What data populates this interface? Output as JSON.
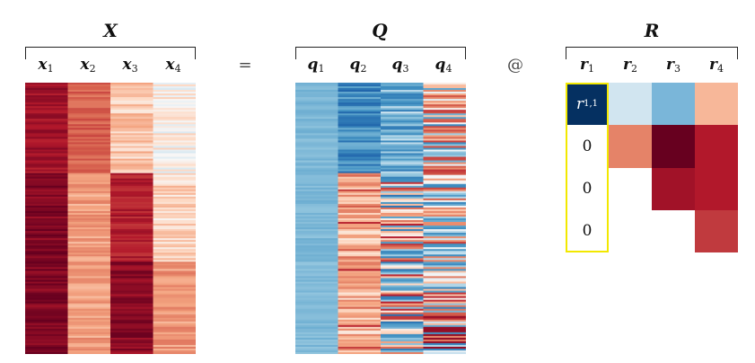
{
  "equation": {
    "x_title": "X",
    "equals": "=",
    "q_title": "Q",
    "at": "@",
    "r_title": "R"
  },
  "x_columns": [
    {
      "base": "x",
      "sub": "1"
    },
    {
      "base": "x",
      "sub": "2"
    },
    {
      "base": "x",
      "sub": "3"
    },
    {
      "base": "x",
      "sub": "4"
    }
  ],
  "q_columns": [
    {
      "base": "q",
      "sub": "1"
    },
    {
      "base": "q",
      "sub": "2"
    },
    {
      "base": "q",
      "sub": "3"
    },
    {
      "base": "q",
      "sub": "4"
    }
  ],
  "r_columns": [
    {
      "base": "r",
      "sub": "1"
    },
    {
      "base": "r",
      "sub": "2"
    },
    {
      "base": "r",
      "sub": "3"
    },
    {
      "base": "r",
      "sub": "4"
    }
  ],
  "r_matrix": {
    "highlight_label": {
      "base": "r",
      "sub": "1,1"
    },
    "zero": "0",
    "colors": [
      [
        "#053061",
        "#d1e5f0",
        "#7ab6d9",
        "#f7b799"
      ],
      [
        "#ffffff",
        "#e58368",
        "#67001f",
        "#b2182b"
      ],
      [
        "#ffffff",
        "#ffffff",
        "#a11228",
        "#b2182b"
      ],
      [
        "#ffffff",
        "#ffffff",
        "#ffffff",
        "#c03a3e"
      ]
    ],
    "labels": [
      [
        "r11",
        "",
        "",
        ""
      ],
      [
        "0",
        "",
        "",
        ""
      ],
      [
        "0",
        "",
        "",
        ""
      ],
      [
        "0",
        "",
        "",
        ""
      ]
    ],
    "highlight_color": "#f2e800"
  },
  "colors": {
    "deep_red": "#67001f",
    "red": "#b2182b",
    "salmon": "#f4a582",
    "light_salmon": "#fddbc7",
    "white": "#f7f7f7",
    "light_blue": "#d1e5f0",
    "blue": "#92c5de",
    "mid_blue": "#4393c3",
    "dark_blue": "#053061",
    "bracket": "#222222"
  }
}
